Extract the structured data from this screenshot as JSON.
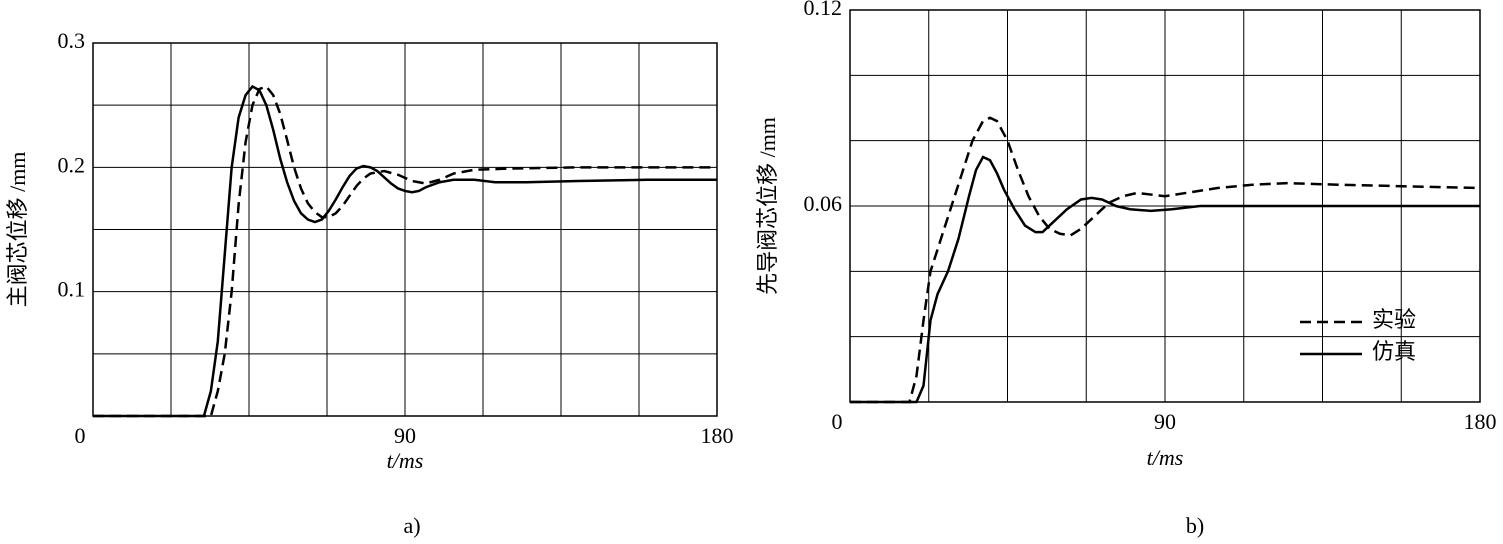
{
  "chart_data": [
    {
      "type": "line",
      "y_label": "主阀芯位移 /mm",
      "x_label": "t/ms",
      "caption": "a)",
      "xlim": [
        0,
        180
      ],
      "xticks": [
        0,
        90,
        180
      ],
      "minor_xticks": [
        22.5,
        45,
        67.5,
        112.5,
        135,
        157.5
      ],
      "ylim": [
        0,
        0.3
      ],
      "yticks": [
        0.1,
        0.2,
        0.3
      ],
      "minor_yticks": [
        0.05,
        0.15,
        0.25
      ],
      "grid": true,
      "series": [
        {
          "color": "#000000",
          "dashed": true,
          "x": [
            0,
            34,
            36,
            38,
            40,
            42,
            44,
            46,
            48,
            50,
            52,
            54,
            56,
            58,
            60,
            62,
            64,
            66,
            68,
            70,
            72,
            74,
            76,
            78,
            80,
            84,
            88,
            92,
            96,
            100,
            104,
            110,
            120,
            140,
            160,
            180
          ],
          "values": [
            0,
            0,
            0.02,
            0.05,
            0.1,
            0.17,
            0.22,
            0.25,
            0.263,
            0.265,
            0.258,
            0.243,
            0.222,
            0.2,
            0.183,
            0.171,
            0.164,
            0.16,
            0.16,
            0.163,
            0.169,
            0.177,
            0.185,
            0.191,
            0.195,
            0.197,
            0.194,
            0.189,
            0.187,
            0.19,
            0.195,
            0.198,
            0.199,
            0.2,
            0.2,
            0.2
          ]
        },
        {
          "color": "#000000",
          "dashed": false,
          "x": [
            0,
            32,
            34,
            36,
            38,
            40,
            42,
            44,
            46,
            48,
            50,
            52,
            54,
            56,
            58,
            60,
            62,
            64,
            66,
            68,
            70,
            72,
            74,
            76,
            78,
            80,
            82,
            84,
            86,
            88,
            90,
            92,
            94,
            96,
            100,
            104,
            110,
            116,
            125,
            140,
            160,
            180
          ],
          "values": [
            0,
            0,
            0.02,
            0.06,
            0.13,
            0.2,
            0.24,
            0.258,
            0.265,
            0.262,
            0.25,
            0.23,
            0.207,
            0.188,
            0.173,
            0.163,
            0.158,
            0.156,
            0.158,
            0.165,
            0.174,
            0.184,
            0.193,
            0.199,
            0.201,
            0.2,
            0.197,
            0.192,
            0.187,
            0.183,
            0.181,
            0.18,
            0.181,
            0.184,
            0.188,
            0.19,
            0.19,
            0.188,
            0.188,
            0.189,
            0.19,
            0.19
          ]
        }
      ]
    },
    {
      "type": "line",
      "y_label": "先导阀芯位移 /mm",
      "x_label": "t/ms",
      "caption": "b)",
      "xlim": [
        0,
        180
      ],
      "xticks": [
        0,
        90,
        180
      ],
      "minor_xticks": [
        22.5,
        45,
        67.5,
        112.5,
        135,
        157.5
      ],
      "ylim": [
        0,
        0.12
      ],
      "yticks": [
        0.06,
        0.12
      ],
      "minor_yticks": [
        0.02,
        0.04,
        0.08,
        0.1
      ],
      "grid": true,
      "legend": "lower right",
      "series": [
        {
          "name": "实验",
          "color": "#000000",
          "dashed": true,
          "x": [
            0,
            17,
            19,
            21,
            23,
            26,
            29,
            32,
            35,
            38,
            40,
            42,
            45,
            48,
            51,
            54,
            57,
            60,
            63,
            66,
            70,
            74,
            78,
            82,
            86,
            90,
            96,
            105,
            115,
            125,
            140,
            160,
            180
          ],
          "values": [
            0,
            0,
            0.008,
            0.025,
            0.04,
            0.05,
            0.06,
            0.07,
            0.08,
            0.086,
            0.087,
            0.086,
            0.08,
            0.071,
            0.063,
            0.057,
            0.053,
            0.0515,
            0.051,
            0.053,
            0.057,
            0.061,
            0.063,
            0.064,
            0.0635,
            0.063,
            0.064,
            0.0655,
            0.0665,
            0.067,
            0.0665,
            0.066,
            0.0655
          ]
        },
        {
          "name": "仿真",
          "color": "#000000",
          "dashed": false,
          "x": [
            0,
            19,
            21,
            22,
            23,
            25,
            28,
            31,
            34,
            36,
            38,
            40,
            42,
            44,
            47,
            50,
            53,
            55,
            58,
            62,
            66,
            69,
            72,
            76,
            80,
            86,
            92,
            100,
            120,
            150,
            180
          ],
          "values": [
            0,
            0,
            0.005,
            0.015,
            0.025,
            0.033,
            0.04,
            0.05,
            0.063,
            0.071,
            0.075,
            0.074,
            0.07,
            0.065,
            0.059,
            0.054,
            0.052,
            0.052,
            0.055,
            0.059,
            0.062,
            0.0625,
            0.062,
            0.06,
            0.059,
            0.0585,
            0.059,
            0.06,
            0.06,
            0.06,
            0.06
          ]
        }
      ]
    }
  ]
}
